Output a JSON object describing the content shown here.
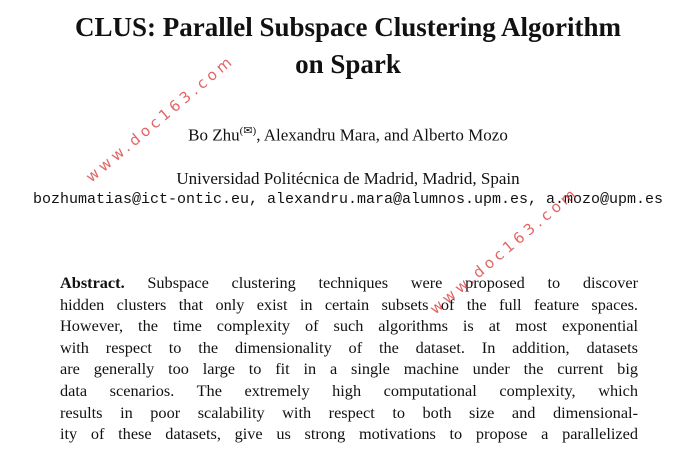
{
  "title_lines": [
    "CLUS: Parallel Subspace Clustering Algorithm",
    "on Spark"
  ],
  "authors": {
    "first": "Bo Zhu",
    "mark": "(✉)",
    "rest": ", Alexandru Mara, and Alberto Mozo"
  },
  "affiliation": "Universidad Politécnica de Madrid, Madrid, Spain",
  "emails": "bozhumatias@ict-ontic.eu, alexandru.mara@alumnos.upm.es, a.mozo@upm.es",
  "abstract": {
    "label": "Abstract.",
    "lines": [
      "Subspace clustering techniques were proposed to discover",
      "hidden clusters that only exist in certain subsets of the full feature spaces.",
      "However, the time complexity of such algorithms is at most exponential",
      "with respect to the dimensionality of the dataset. In addition, datasets",
      "are generally too large to fit in a single machine under the current big",
      "data scenarios. The extremely high computational complexity, which",
      "results in poor scalability with respect to both size and dimensional-",
      "ity of these datasets, give us strong motivations to propose a parallelized"
    ]
  },
  "watermarks": [
    "www.doc163.com",
    "www.doc163.com"
  ]
}
